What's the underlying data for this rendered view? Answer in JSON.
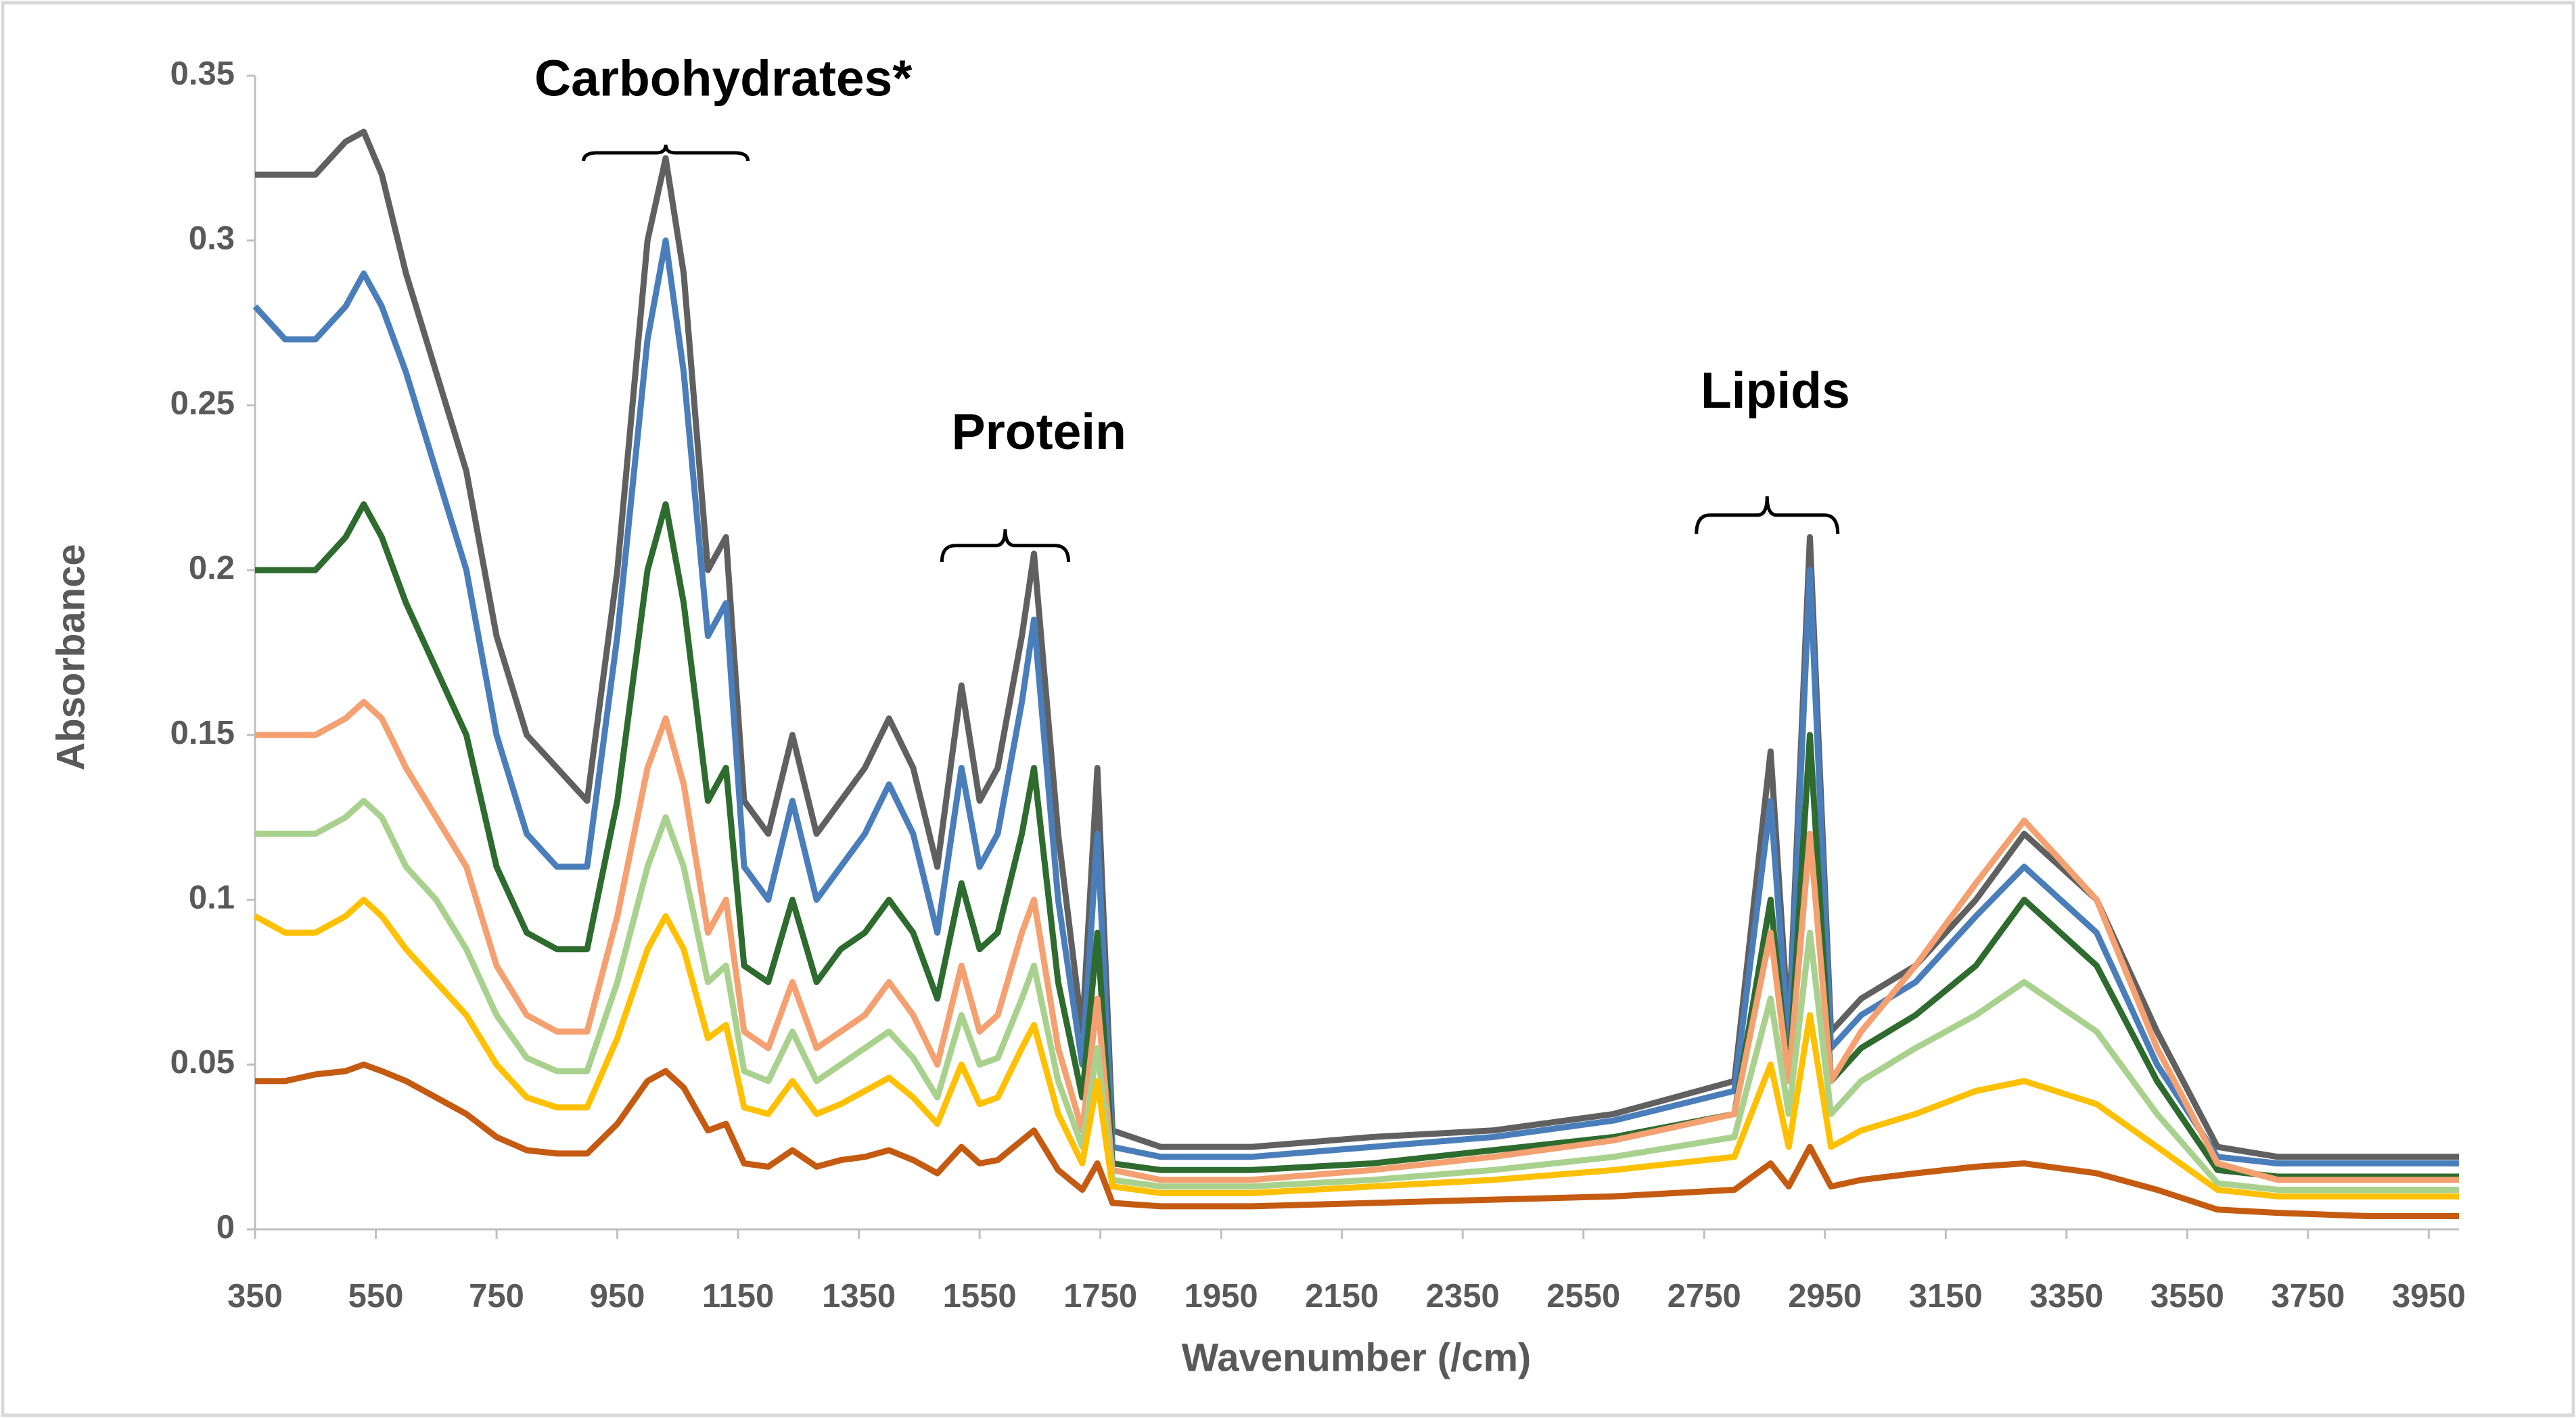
{
  "chart_data": {
    "type": "line",
    "y_label": "Absorbance",
    "x_label": "Wavenumber (/cm)",
    "annotations": [
      "Carbohydrates*",
      "Protein",
      "Lipids"
    ],
    "x": [
      350,
      400,
      450,
      500,
      530,
      560,
      600,
      650,
      700,
      750,
      800,
      850,
      900,
      950,
      1000,
      1030,
      1060,
      1100,
      1130,
      1160,
      1200,
      1240,
      1280,
      1320,
      1360,
      1400,
      1440,
      1480,
      1520,
      1550,
      1580,
      1620,
      1640,
      1680,
      1720,
      1745,
      1770,
      1850,
      2000,
      2200,
      2400,
      2600,
      2800,
      2860,
      2890,
      2925,
      2960,
      3010,
      3100,
      3200,
      3280,
      3400,
      3500,
      3600,
      3700,
      3850,
      4000
    ],
    "series": [
      {
        "color": "#606060",
        "values": [
          0.32,
          0.32,
          0.32,
          0.33,
          0.333,
          0.32,
          0.29,
          0.26,
          0.23,
          0.18,
          0.15,
          0.14,
          0.13,
          0.2,
          0.3,
          0.325,
          0.29,
          0.2,
          0.21,
          0.13,
          0.12,
          0.15,
          0.12,
          0.13,
          0.14,
          0.155,
          0.14,
          0.11,
          0.165,
          0.13,
          0.14,
          0.18,
          0.205,
          0.12,
          0.06,
          0.14,
          0.03,
          0.025,
          0.025,
          0.028,
          0.03,
          0.035,
          0.045,
          0.145,
          0.06,
          0.21,
          0.06,
          0.07,
          0.08,
          0.1,
          0.12,
          0.1,
          0.06,
          0.025,
          0.022,
          0.022,
          0.022
        ]
      },
      {
        "color": "#4a7ebb",
        "values": [
          0.28,
          0.27,
          0.27,
          0.28,
          0.29,
          0.28,
          0.26,
          0.23,
          0.2,
          0.15,
          0.12,
          0.11,
          0.11,
          0.18,
          0.27,
          0.3,
          0.26,
          0.18,
          0.19,
          0.11,
          0.1,
          0.13,
          0.1,
          0.11,
          0.12,
          0.135,
          0.12,
          0.09,
          0.14,
          0.11,
          0.12,
          0.16,
          0.185,
          0.1,
          0.05,
          0.12,
          0.025,
          0.022,
          0.022,
          0.025,
          0.028,
          0.033,
          0.042,
          0.13,
          0.055,
          0.2,
          0.055,
          0.065,
          0.075,
          0.095,
          0.11,
          0.09,
          0.05,
          0.022,
          0.02,
          0.02,
          0.02
        ]
      },
      {
        "color": "#2e6b2e",
        "values": [
          0.2,
          0.2,
          0.2,
          0.21,
          0.22,
          0.21,
          0.19,
          0.17,
          0.15,
          0.11,
          0.09,
          0.085,
          0.085,
          0.13,
          0.2,
          0.22,
          0.19,
          0.13,
          0.14,
          0.08,
          0.075,
          0.1,
          0.075,
          0.085,
          0.09,
          0.1,
          0.09,
          0.07,
          0.105,
          0.085,
          0.09,
          0.12,
          0.14,
          0.075,
          0.04,
          0.09,
          0.02,
          0.018,
          0.018,
          0.02,
          0.024,
          0.028,
          0.035,
          0.1,
          0.045,
          0.15,
          0.045,
          0.055,
          0.065,
          0.08,
          0.1,
          0.08,
          0.045,
          0.018,
          0.016,
          0.016,
          0.016
        ]
      },
      {
        "color": "#f4a070",
        "values": [
          0.15,
          0.15,
          0.15,
          0.155,
          0.16,
          0.155,
          0.14,
          0.125,
          0.11,
          0.08,
          0.065,
          0.06,
          0.06,
          0.095,
          0.14,
          0.155,
          0.135,
          0.09,
          0.1,
          0.06,
          0.055,
          0.075,
          0.055,
          0.06,
          0.065,
          0.075,
          0.065,
          0.05,
          0.08,
          0.06,
          0.065,
          0.09,
          0.1,
          0.055,
          0.03,
          0.07,
          0.018,
          0.015,
          0.015,
          0.018,
          0.022,
          0.027,
          0.035,
          0.09,
          0.045,
          0.12,
          0.045,
          0.06,
          0.08,
          0.105,
          0.124,
          0.1,
          0.055,
          0.02,
          0.015,
          0.015,
          0.015
        ]
      },
      {
        "color": "#a9d18e",
        "values": [
          0.12,
          0.12,
          0.12,
          0.125,
          0.13,
          0.125,
          0.11,
          0.1,
          0.085,
          0.065,
          0.052,
          0.048,
          0.048,
          0.075,
          0.11,
          0.125,
          0.11,
          0.075,
          0.08,
          0.048,
          0.045,
          0.06,
          0.045,
          0.05,
          0.055,
          0.06,
          0.052,
          0.04,
          0.065,
          0.05,
          0.052,
          0.07,
          0.08,
          0.045,
          0.025,
          0.055,
          0.015,
          0.013,
          0.013,
          0.015,
          0.018,
          0.022,
          0.028,
          0.07,
          0.035,
          0.09,
          0.035,
          0.045,
          0.055,
          0.065,
          0.075,
          0.06,
          0.035,
          0.014,
          0.012,
          0.012,
          0.012
        ]
      },
      {
        "color": "#ffc000",
        "values": [
          0.095,
          0.09,
          0.09,
          0.095,
          0.1,
          0.095,
          0.085,
          0.075,
          0.065,
          0.05,
          0.04,
          0.037,
          0.037,
          0.058,
          0.085,
          0.095,
          0.085,
          0.058,
          0.062,
          0.037,
          0.035,
          0.045,
          0.035,
          0.038,
          0.042,
          0.046,
          0.04,
          0.032,
          0.05,
          0.038,
          0.04,
          0.055,
          0.062,
          0.035,
          0.02,
          0.045,
          0.013,
          0.011,
          0.011,
          0.013,
          0.015,
          0.018,
          0.022,
          0.05,
          0.025,
          0.065,
          0.025,
          0.03,
          0.035,
          0.042,
          0.045,
          0.038,
          0.025,
          0.012,
          0.01,
          0.01,
          0.01
        ]
      },
      {
        "color": "#c55a11",
        "values": [
          0.045,
          0.045,
          0.047,
          0.048,
          0.05,
          0.048,
          0.045,
          0.04,
          0.035,
          0.028,
          0.024,
          0.023,
          0.023,
          0.032,
          0.045,
          0.048,
          0.043,
          0.03,
          0.032,
          0.02,
          0.019,
          0.024,
          0.019,
          0.021,
          0.022,
          0.024,
          0.021,
          0.017,
          0.025,
          0.02,
          0.021,
          0.027,
          0.03,
          0.018,
          0.012,
          0.02,
          0.008,
          0.007,
          0.007,
          0.008,
          0.009,
          0.01,
          0.012,
          0.02,
          0.013,
          0.025,
          0.013,
          0.015,
          0.017,
          0.019,
          0.02,
          0.017,
          0.012,
          0.006,
          0.005,
          0.004,
          0.004
        ]
      }
    ],
    "xlim": [
      350,
      4000
    ],
    "xticks": [
      350,
      550,
      750,
      950,
      1150,
      1350,
      1550,
      1750,
      1950,
      2150,
      2350,
      2550,
      2750,
      2950,
      3150,
      3350,
      3550,
      3750,
      3950
    ],
    "ylim": [
      0,
      0.35
    ],
    "yticks": [
      0,
      0.05,
      0.1,
      0.15,
      0.2,
      0.25,
      0.3,
      0.35
    ],
    "grid": false
  }
}
